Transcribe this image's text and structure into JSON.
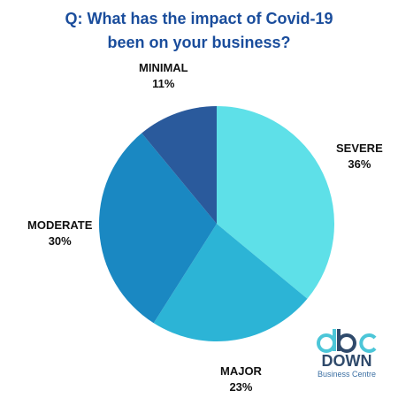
{
  "title_lines": [
    "Q: What has the impact of Covid-19",
    "been on your business?"
  ],
  "chart_data": {
    "type": "pie",
    "title": "Q: What has the impact of Covid-19 been on your business?",
    "slices": [
      {
        "label": "SEVERE",
        "value": 36,
        "value_label": "36%",
        "color": "#5ee0e8"
      },
      {
        "label": "MAJOR",
        "value": 23,
        "value_label": "23%",
        "color": "#2cb4d6"
      },
      {
        "label": "MODERATE",
        "value": 30,
        "value_label": "30%",
        "color": "#1a88c2"
      },
      {
        "label": "MINIMAL",
        "value": 11,
        "value_label": "11%",
        "color": "#2a5a9c"
      }
    ],
    "start_angle": "12 o'clock",
    "direction": "clockwise"
  },
  "logo": {
    "mark": "dbc",
    "name": "DOWN",
    "subtitle": "Business Centre",
    "colors": {
      "teal": "#4cc6d8",
      "navy": "#2f4a6b"
    }
  }
}
